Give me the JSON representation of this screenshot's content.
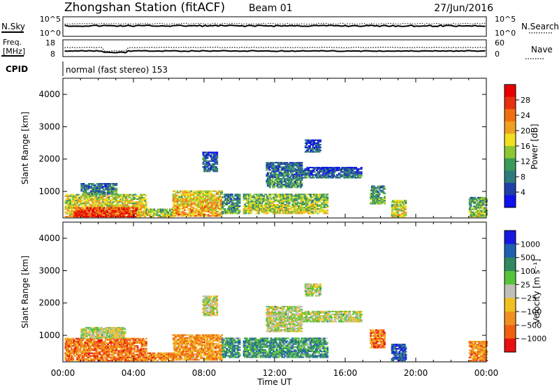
{
  "header": {
    "station": "Zhongshan Station (fitACF)",
    "beam": "Beam 01",
    "date": "27/Jun/2016"
  },
  "noise_panel": {
    "left_label": "N.Sky",
    "left_ticks": [
      "10^5",
      "10^0"
    ],
    "right_label": "N.Search",
    "right_ticks": [
      "10^5",
      "10^0"
    ]
  },
  "freq_panel": {
    "left_label_line1": "Freq.",
    "left_label_line2": "[MHz]",
    "left_ticks": [
      "18",
      "8"
    ],
    "right_label": "Nave",
    "right_ticks": [
      "60",
      "0"
    ]
  },
  "cpid_panel": {
    "label": "CPID",
    "text": "normal (fast stereo) 153"
  },
  "axes": {
    "ylabel": "Slant Range [km]",
    "xlabel": "Time UT",
    "y_ticks": [
      "1000",
      "2000",
      "3000",
      "4000"
    ],
    "x_ticks": [
      "00:00",
      "04:00",
      "08:00",
      "12:00",
      "16:00",
      "20:00",
      "00:00"
    ]
  },
  "colorbars": {
    "power": {
      "label": "Power [dB]",
      "ticks": [
        "4",
        "8",
        "12",
        "16",
        "20",
        "24",
        "28"
      ],
      "colors": [
        "#1010f0",
        "#2040a8",
        "#2f7a7a",
        "#3a9a5a",
        "#8cc832",
        "#f0e020",
        "#f0a020",
        "#f07010",
        "#e83010",
        "#e80000"
      ]
    },
    "velocity": {
      "label": "Velocity [m s⁻¹]",
      "ticks": [
        "1000",
        "500",
        "100",
        "25",
        "−25",
        "−100",
        "−500",
        "−1000"
      ],
      "colors": [
        "#1818e0",
        "#2060b0",
        "#2f8a60",
        "#56c43a",
        "#c0c0b8",
        "#f0c020",
        "#f09020",
        "#f06010",
        "#e81010"
      ]
    }
  },
  "chart_data": {
    "type": "heatmap",
    "x_range_hours": [
      0,
      24
    ],
    "y_range_km": [
      180,
      4500
    ],
    "panels": [
      {
        "name": "power",
        "regions": [
          {
            "t0": 0.1,
            "t1": 4.7,
            "r0": 200,
            "r1": 900,
            "level": 0.55
          },
          {
            "t0": 0.6,
            "t1": 4.2,
            "r0": 200,
            "r1": 500,
            "level": 0.85
          },
          {
            "t0": 1.0,
            "t1": 3.0,
            "r0": 900,
            "r1": 1250,
            "level": 0.25
          },
          {
            "t0": 4.7,
            "t1": 6.2,
            "r0": 200,
            "r1": 450,
            "level": 0.45
          },
          {
            "t0": 6.2,
            "t1": 9.0,
            "r0": 220,
            "r1": 1000,
            "level": 0.6
          },
          {
            "t0": 7.9,
            "t1": 8.7,
            "r0": 1600,
            "r1": 2200,
            "level": 0.2
          },
          {
            "t0": 9.0,
            "t1": 10.0,
            "r0": 300,
            "r1": 900,
            "level": 0.3
          },
          {
            "t0": 10.2,
            "t1": 15.0,
            "r0": 300,
            "r1": 900,
            "level": 0.45
          },
          {
            "t0": 11.5,
            "t1": 13.5,
            "r0": 1100,
            "r1": 1900,
            "level": 0.25
          },
          {
            "t0": 13.5,
            "t1": 16.9,
            "r0": 1400,
            "r1": 1750,
            "level": 0.18
          },
          {
            "t0": 13.7,
            "t1": 14.6,
            "r0": 2200,
            "r1": 2600,
            "level": 0.15
          },
          {
            "t0": 17.4,
            "t1": 18.2,
            "r0": 600,
            "r1": 1150,
            "level": 0.35
          },
          {
            "t0": 18.6,
            "t1": 19.4,
            "r0": 200,
            "r1": 700,
            "level": 0.5
          },
          {
            "t0": 23.0,
            "t1": 24.0,
            "r0": 200,
            "r1": 800,
            "level": 0.4
          }
        ]
      },
      {
        "name": "velocity",
        "regions": [
          {
            "t0": 0.1,
            "t1": 4.7,
            "r0": 200,
            "r1": 900,
            "level": 0.78
          },
          {
            "t0": 1.0,
            "t1": 3.5,
            "r0": 900,
            "r1": 1250,
            "level": 0.5
          },
          {
            "t0": 4.7,
            "t1": 6.2,
            "r0": 200,
            "r1": 450,
            "level": 0.75
          },
          {
            "t0": 6.2,
            "t1": 9.0,
            "r0": 220,
            "r1": 1000,
            "level": 0.72
          },
          {
            "t0": 7.9,
            "t1": 8.7,
            "r0": 1600,
            "r1": 2200,
            "level": 0.52
          },
          {
            "t0": 9.0,
            "t1": 10.0,
            "r0": 300,
            "r1": 900,
            "level": 0.3
          },
          {
            "t0": 10.2,
            "t1": 15.0,
            "r0": 300,
            "r1": 900,
            "level": 0.3
          },
          {
            "t0": 11.5,
            "t1": 13.5,
            "r0": 1100,
            "r1": 1900,
            "level": 0.5
          },
          {
            "t0": 13.5,
            "t1": 16.9,
            "r0": 1400,
            "r1": 1750,
            "level": 0.5
          },
          {
            "t0": 13.7,
            "t1": 14.6,
            "r0": 2200,
            "r1": 2600,
            "level": 0.5
          },
          {
            "t0": 17.4,
            "t1": 18.2,
            "r0": 600,
            "r1": 1150,
            "level": 0.78
          },
          {
            "t0": 18.6,
            "t1": 19.4,
            "r0": 200,
            "r1": 700,
            "level": 0.15
          },
          {
            "t0": 23.0,
            "t1": 24.0,
            "r0": 200,
            "r1": 800,
            "level": 0.75
          }
        ]
      }
    ]
  }
}
